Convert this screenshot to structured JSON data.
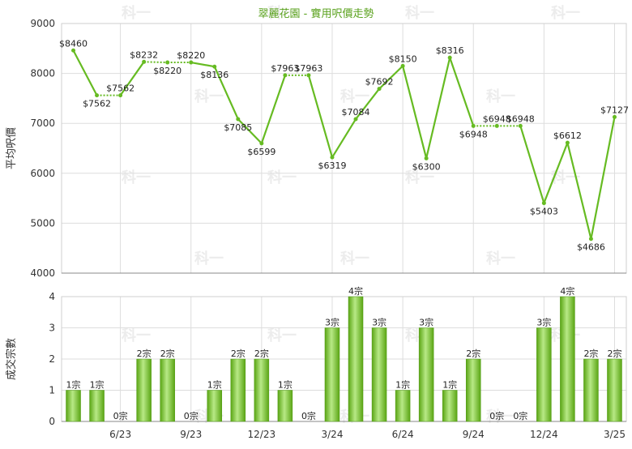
{
  "title": "翠麗花園 - 實用呎價走勢",
  "colors": {
    "line": "#66bb22",
    "bar_dark": "#5aa514",
    "bar_light": "#b8e986",
    "grid": "#dddddd",
    "axis": "#888888",
    "watermark": "#ececec"
  },
  "watermark": "科一",
  "chart_data": [
    {
      "type": "line",
      "ylabel": "平均呎價",
      "ylim": [
        4000,
        9000
      ],
      "yticks": [
        4000,
        5000,
        6000,
        7000,
        8000,
        9000
      ],
      "grid": true,
      "point_labels": [
        "$8460",
        "$7562",
        "$7562",
        "$8232",
        "$8220",
        "$8220",
        "$8136",
        "$7085",
        "$6599",
        "$7963",
        "$7963",
        "$6319",
        "$7084",
        "$7692",
        "$8150",
        "$6300",
        "$8316",
        "$6948",
        "$6948",
        "$6948",
        "$5403",
        "$6612",
        "$4686",
        "$7127"
      ],
      "values": [
        8460,
        7562,
        7562,
        8232,
        8220,
        8220,
        8136,
        7085,
        6599,
        7963,
        7963,
        6319,
        7084,
        7692,
        8150,
        6300,
        8316,
        6948,
        6948,
        6948,
        5403,
        6612,
        4686,
        7127
      ],
      "no_sales_segments": [
        [
          1,
          2
        ],
        [
          3,
          5
        ],
        [
          9,
          10
        ],
        [
          17,
          19
        ]
      ]
    },
    {
      "type": "bar",
      "ylabel": "成交宗數",
      "ylim": [
        0,
        4
      ],
      "yticks": [
        0,
        1,
        2,
        3,
        4
      ],
      "grid": true,
      "value_labels": [
        "1宗",
        "1宗",
        "0宗",
        "2宗",
        "2宗",
        "0宗",
        "1宗",
        "2宗",
        "2宗",
        "1宗",
        "0宗",
        "3宗",
        "4宗",
        "3宗",
        "1宗",
        "3宗",
        "1宗",
        "2宗",
        "0宗",
        "0宗",
        "3宗",
        "4宗",
        "2宗",
        "2宗"
      ],
      "values": [
        1,
        1,
        0,
        2,
        2,
        0,
        1,
        2,
        2,
        1,
        0,
        3,
        4,
        3,
        1,
        3,
        1,
        2,
        0,
        0,
        3,
        4,
        2,
        2
      ]
    }
  ],
  "x_ticks": [
    {
      "index": 2,
      "label": "6/23"
    },
    {
      "index": 5,
      "label": "9/23"
    },
    {
      "index": 8,
      "label": "12/23"
    },
    {
      "index": 11,
      "label": "3/24"
    },
    {
      "index": 14,
      "label": "6/24"
    },
    {
      "index": 17,
      "label": "9/24"
    },
    {
      "index": 20,
      "label": "12/24"
    },
    {
      "index": 23,
      "label": "3/25"
    }
  ]
}
